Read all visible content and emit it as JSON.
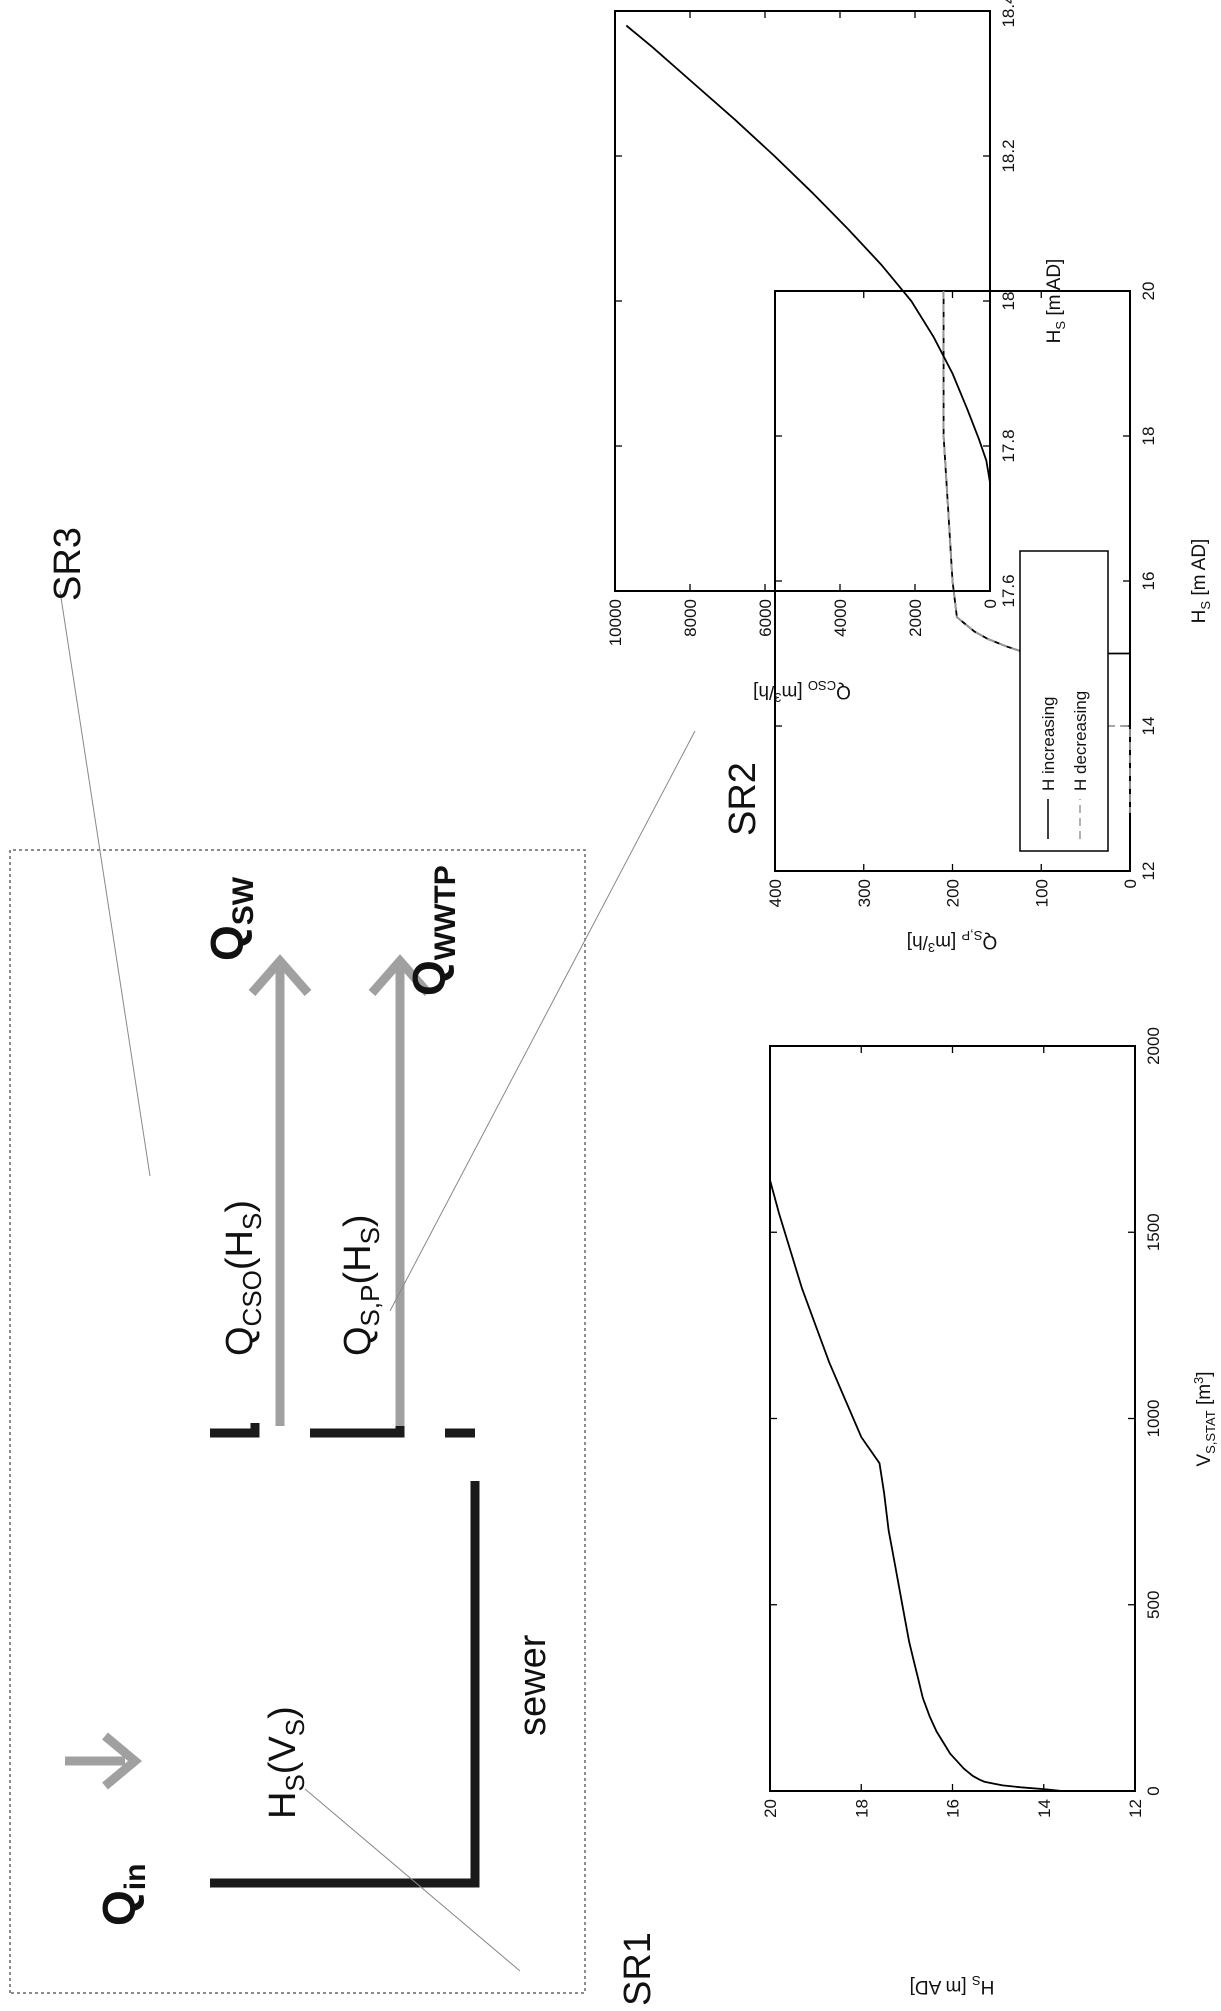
{
  "diagram": {
    "q_in": "Q",
    "q_in_sub": "in",
    "hs_v": "H",
    "hs_v_sub1": "S",
    "hs_v_mid": "(V",
    "hs_v_sub2": "S",
    "hs_v_end": ")",
    "sewer": "sewer",
    "q_cso": "Q",
    "q_cso_sub": "CSO",
    "q_cso_mid": "(H",
    "q_cso_sub2": "S",
    "q_cso_end": ")",
    "q_sp": "Q",
    "q_sp_sub": "S,P",
    "q_sp_mid": "(H",
    "q_sp_sub2": "S",
    "q_sp_end": ")",
    "q_sw": "Q",
    "q_sw_sub": "SW",
    "q_wwtp": "Q",
    "q_wwtp_sub": "WWTP",
    "sr1": "SR1",
    "sr2": "SR2",
    "sr3": "SR3",
    "colors": {
      "arrow": "#a0a0a0",
      "wall": "#1a1a1a",
      "leader": "#888888"
    }
  },
  "chart_data": [
    {
      "id": "sr1",
      "type": "line",
      "xlabel": "V",
      "xlabel_sub": "S,STAT",
      "xlabel_unit": " [m",
      "xlabel_sup": "3",
      "xlabel_end": "]",
      "ylabel": "H",
      "ylabel_sub": "S",
      "ylabel_unit": " [m AD]",
      "xlim": [
        0,
        2000
      ],
      "ylim": [
        12,
        20
      ],
      "xticks": [
        0,
        500,
        1000,
        1500,
        2000
      ],
      "yticks": [
        12,
        14,
        16,
        18,
        20
      ],
      "series": [
        {
          "style": "solid",
          "x": [
            0,
            5,
            10,
            15,
            20,
            25,
            30,
            40,
            50,
            60,
            80,
            100,
            130,
            160,
            200,
            250,
            300,
            350,
            400,
            500,
            600,
            700,
            800,
            880,
            950,
            1050,
            1150,
            1250,
            1350,
            1450,
            1550,
            1640
          ],
          "y": [
            13.6,
            14.0,
            14.5,
            14.9,
            15.1,
            15.3,
            15.4,
            15.55,
            15.65,
            15.75,
            15.9,
            16.05,
            16.2,
            16.35,
            16.5,
            16.65,
            16.75,
            16.85,
            16.95,
            17.1,
            17.25,
            17.4,
            17.5,
            17.6,
            18.0,
            18.35,
            18.7,
            19.0,
            19.3,
            19.55,
            19.8,
            20.0
          ]
        }
      ]
    },
    {
      "id": "sr2",
      "type": "line",
      "xlabel": "H",
      "xlabel_sub": "S",
      "xlabel_unit": " [m AD]",
      "ylabel": "Q",
      "ylabel_sub": "S,P",
      "ylabel_unit": " [m",
      "ylabel_sup": "3",
      "ylabel_end": "/h]",
      "xlim": [
        12,
        20
      ],
      "ylim": [
        0,
        400
      ],
      "xticks": [
        12,
        14,
        16,
        18,
        20
      ],
      "yticks": [
        0,
        100,
        200,
        300,
        400
      ],
      "legend": {
        "position": "top-left",
        "entries": [
          "H increasing",
          "H decreasing"
        ]
      },
      "series": [
        {
          "name": "H increasing",
          "style": "solid",
          "x": [
            12,
            13,
            14,
            14.9,
            15.0,
            15.0,
            15.1,
            15.2,
            15.3,
            15.4,
            15.5,
            16,
            17,
            18,
            19,
            20
          ],
          "y": [
            0,
            0,
            0,
            0,
            0,
            115,
            140,
            160,
            175,
            185,
            195,
            200,
            205,
            210,
            210,
            210
          ]
        },
        {
          "name": "H decreasing",
          "style": "dashed",
          "x": [
            20,
            19,
            18,
            17,
            16,
            15.5,
            15.4,
            15.3,
            15.2,
            15.1,
            15.0,
            14.5,
            14.0,
            14.0,
            13.5,
            12.8
          ],
          "y": [
            210,
            210,
            210,
            205,
            200,
            195,
            185,
            175,
            160,
            140,
            115,
            115,
            115,
            0,
            0,
            0
          ]
        }
      ]
    },
    {
      "id": "sr3",
      "type": "line",
      "xlabel": "H",
      "xlabel_sub": "S",
      "xlabel_unit": " [m AD]",
      "ylabel": "Q",
      "ylabel_sub": "CSO",
      "ylabel_unit": " [m",
      "ylabel_sup": "3",
      "ylabel_end": "/h]",
      "xlim": [
        17.6,
        18.4
      ],
      "ylim": [
        0,
        10000
      ],
      "xticks": [
        17.6,
        17.8,
        18,
        18.2,
        18.4
      ],
      "xtick_labels": [
        "17.6",
        "17.8",
        "18",
        "18.2",
        "18.4"
      ],
      "yticks": [
        0,
        2000,
        4000,
        6000,
        8000,
        10000
      ],
      "series": [
        {
          "style": "solid",
          "x": [
            17.75,
            17.78,
            17.81,
            17.85,
            17.9,
            17.95,
            18.0,
            18.05,
            18.1,
            18.15,
            18.2,
            18.25,
            18.3,
            18.35,
            18.38
          ],
          "y": [
            0,
            100,
            300,
            600,
            1000,
            1500,
            2100,
            2900,
            3800,
            4750,
            5750,
            6800,
            7900,
            9000,
            9700
          ]
        }
      ]
    }
  ]
}
